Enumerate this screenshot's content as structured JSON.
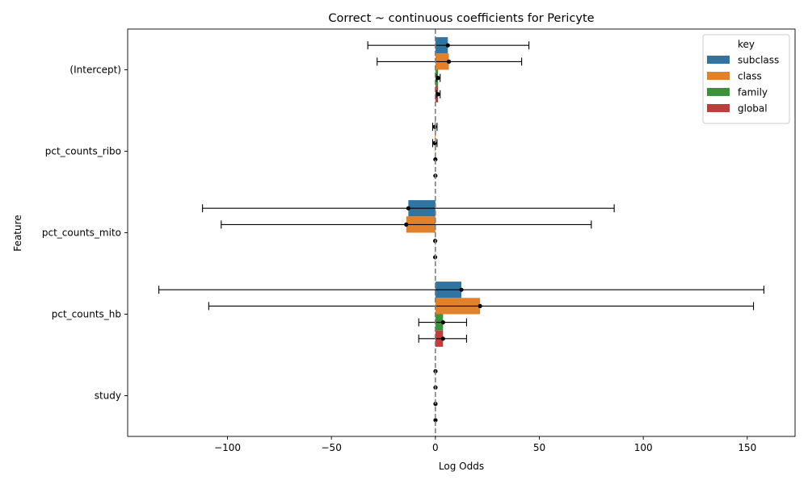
{
  "chart_data": {
    "type": "bar",
    "orientation": "horizontal",
    "title": "Correct ~ continuous coefficients for Pericyte",
    "xlabel": "Log Odds",
    "ylabel": "Feature",
    "xlim": [
      -148,
      173
    ],
    "xticks": [
      -100,
      -50,
      0,
      50,
      100,
      150
    ],
    "xtick_labels": [
      "−100",
      "−50",
      "0",
      "50",
      "100",
      "150"
    ],
    "categories": [
      "(Intercept)",
      "pct_counts_ribo",
      "pct_counts_mito",
      "pct_counts_hb",
      "study"
    ],
    "reference_line": 0,
    "grid": false,
    "legend": {
      "title": "key",
      "placement": "top-right"
    },
    "series": [
      {
        "name": "subclass",
        "color": "#3274a1",
        "values": [
          6,
          -0.3,
          -13,
          12.5,
          0.05
        ],
        "err_low": [
          -32.5,
          -1.3,
          -112,
          -133,
          0.05
        ],
        "err_high": [
          45,
          0.8,
          86,
          158,
          0.05
        ]
      },
      {
        "name": "class",
        "color": "#e1812c",
        "values": [
          6.5,
          -0.3,
          -14,
          21.5,
          0.05
        ],
        "err_low": [
          -28,
          -1.3,
          -103,
          -109,
          0.05
        ],
        "err_high": [
          41.5,
          0.8,
          75,
          153,
          0.05
        ]
      },
      {
        "name": "family",
        "color": "#3a923a",
        "values": [
          1.3,
          0,
          -0.1,
          3.7,
          0.05
        ],
        "err_low": [
          0.5,
          0,
          -0.1,
          -8,
          0.05
        ],
        "err_high": [
          2.3,
          0,
          -0.1,
          15,
          0.05
        ]
      },
      {
        "name": "global",
        "color": "#c03d3e",
        "values": [
          1.3,
          0,
          -0.1,
          3.7,
          0.05
        ],
        "err_low": [
          0.5,
          0,
          -0.1,
          -8,
          0.05
        ],
        "err_high": [
          2.3,
          0,
          -0.1,
          15,
          0.05
        ]
      }
    ]
  }
}
